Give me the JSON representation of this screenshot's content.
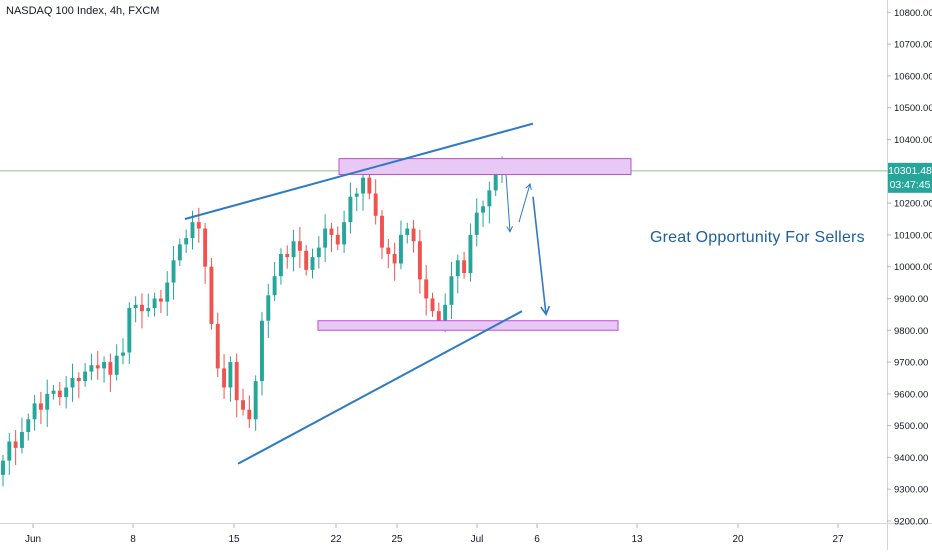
{
  "symbol_title": "NASDAQ 100 Index, 4h, FXCM",
  "price_tag": {
    "price": "10301.48",
    "countdown": "03:47:45",
    "color": "#26a69a"
  },
  "annotation": "Great Opportunity For Sellers",
  "colors": {
    "up": "#26a69a",
    "down": "#ef5350",
    "trendline": "#2e7bc4",
    "zone_fill": "#e8c8f4",
    "zone_border": "#c04ed8",
    "price_line": "#8bc48b"
  },
  "chart_data": {
    "type": "candlestick",
    "title": "NASDAQ 100 Index, 4h, FXCM",
    "timeframe": "4h",
    "ylim": [
      9200,
      10850
    ],
    "y_ticks": [
      "9200.00",
      "9300.00",
      "9400.00",
      "9500.00",
      "9600.00",
      "9700.00",
      "9800.00",
      "9900.00",
      "10000.00",
      "10100.00",
      "10200.00",
      "10300.00",
      "10400.00",
      "10500.00",
      "10600.00",
      "10700.00",
      "10800.00"
    ],
    "x_ticks": [
      "Jun",
      "8",
      "15",
      "22",
      "25",
      "Jul",
      "6",
      "13",
      "20",
      "27"
    ],
    "last_price": 10301.48,
    "closes": [
      9390,
      9450,
      9430,
      9480,
      9520,
      9570,
      9550,
      9600,
      9610,
      9590,
      9620,
      9650,
      9640,
      9670,
      9690,
      9680,
      9700,
      9660,
      9720,
      9730,
      9870,
      9880,
      9860,
      9870,
      9900,
      9890,
      9950,
      10020,
      10070,
      10090,
      10140,
      10120,
      10000,
      9820,
      9680,
      9620,
      9700,
      9580,
      9550,
      9520,
      9640,
      9830,
      9910,
      9970,
      10040,
      10030,
      10080,
      10050,
      9990,
      10030,
      10060,
      10120,
      10100,
      10070,
      10140,
      10220,
      10230,
      10280,
      10230,
      10160,
      10060,
      10040,
      10010,
      10100,
      10120,
      10080,
      9960,
      9900,
      9860,
      9830,
      9880,
      9970,
      10020,
      9980,
      10100,
      10170,
      10190,
      10240,
      10290,
      10301.48
    ],
    "resistance_zone": [
      10290,
      10340
    ],
    "support_zone": [
      9800,
      9830
    ],
    "upper_trendline": {
      "start": [
        "Jun 11",
        10150
      ],
      "end": [
        "Jul 3",
        10450
      ]
    },
    "lower_trendline": {
      "start": [
        "Jun 15",
        9380
      ],
      "end": [
        "Jul 3",
        9860
      ]
    },
    "projection_arrows": [
      [
        10290,
        10110
      ],
      [
        10140,
        10260
      ],
      [
        10220,
        9850
      ]
    ]
  }
}
